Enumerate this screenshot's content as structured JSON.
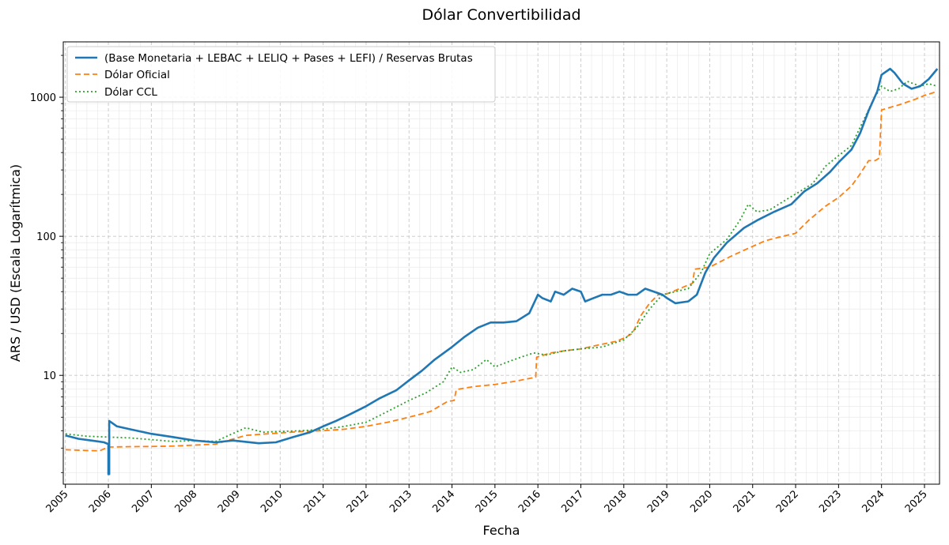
{
  "chart_data": {
    "type": "line",
    "title": "Dólar Convertibilidad",
    "xlabel": "Fecha",
    "ylabel": "ARS / USD (Escala Logarítmica)",
    "yscale": "log",
    "xlim": [
      2004.95,
      2025.35
    ],
    "ylim": [
      1.65,
      2500
    ],
    "y_ticks": [
      10,
      100,
      1000
    ],
    "y_tick_labels": [
      "10",
      "100",
      "1000"
    ],
    "x_ticks": [
      2005,
      2006,
      2007,
      2008,
      2009,
      2010,
      2011,
      2012,
      2013,
      2014,
      2015,
      2016,
      2017,
      2018,
      2019,
      2020,
      2021,
      2022,
      2023,
      2024,
      2025
    ],
    "x_tick_labels": [
      "2005",
      "2006",
      "2007",
      "2008",
      "2009",
      "2010",
      "2011",
      "2012",
      "2013",
      "2014",
      "2015",
      "2016",
      "2017",
      "2018",
      "2019",
      "2020",
      "2021",
      "2022",
      "2023",
      "2024",
      "2025"
    ],
    "grid": true,
    "legend_position": "top-left",
    "series": [
      {
        "name": "(Base Monetaria + LEBAC + LELIQ + Pases + LEFI) / Reservas Brutas",
        "color": "#1f77b4",
        "style": "solid",
        "x": [
          2005.0,
          2005.3,
          2005.6,
          2005.9,
          2006.0,
          2006.0,
          2006.02,
          2006.02,
          2006.2,
          2006.5,
          2007.0,
          2007.5,
          2008.0,
          2008.5,
          2008.9,
          2009.1,
          2009.5,
          2009.9,
          2010.3,
          2010.7,
          2011.0,
          2011.3,
          2011.6,
          2012.0,
          2012.3,
          2012.7,
          2013.0,
          2013.3,
          2013.6,
          2014.0,
          2014.3,
          2014.6,
          2014.9,
          2015.2,
          2015.5,
          2015.8,
          2016.0,
          2016.1,
          2016.3,
          2016.4,
          2016.6,
          2016.8,
          2017.0,
          2017.1,
          2017.3,
          2017.5,
          2017.7,
          2017.9,
          2018.1,
          2018.3,
          2018.5,
          2018.7,
          2018.9,
          2019.0,
          2019.2,
          2019.5,
          2019.7,
          2019.9,
          2020.1,
          2020.4,
          2020.8,
          2021.1,
          2021.5,
          2021.9,
          2022.2,
          2022.5,
          2022.8,
          2023.0,
          2023.3,
          2023.5,
          2023.7,
          2023.9,
          2024.0,
          2024.2,
          2024.3,
          2024.5,
          2024.7,
          2024.9,
          2025.1,
          2025.3
        ],
        "y": [
          3.7,
          3.5,
          3.4,
          3.3,
          3.2,
          1.95,
          1.95,
          4.7,
          4.3,
          4.1,
          3.8,
          3.6,
          3.4,
          3.3,
          3.4,
          3.35,
          3.25,
          3.3,
          3.6,
          3.9,
          4.3,
          4.7,
          5.2,
          6.0,
          6.8,
          7.8,
          9.2,
          10.8,
          13.0,
          16.0,
          19.0,
          22.0,
          24.0,
          24.0,
          24.5,
          28.0,
          38.0,
          36.0,
          34.0,
          40.0,
          38.0,
          42.0,
          40.0,
          34.0,
          36.0,
          38.0,
          38.0,
          40.0,
          38.0,
          38.0,
          42.0,
          40.0,
          38.0,
          36.0,
          33.0,
          34.0,
          38.0,
          55.0,
          70.0,
          90.0,
          115.0,
          130.0,
          150.0,
          170.0,
          210.0,
          240.0,
          290.0,
          340.0,
          420.0,
          550.0,
          800.0,
          1100.0,
          1450.0,
          1600.0,
          1500.0,
          1250.0,
          1150.0,
          1200.0,
          1350.0,
          1600.0
        ]
      },
      {
        "name": "Dólar Oficial",
        "color": "#ff7f0e",
        "style": "dashed",
        "x": [
          2005.0,
          2005.5,
          2005.8,
          2006.0,
          2006.5,
          2007.0,
          2007.5,
          2008.0,
          2008.5,
          2008.7,
          2008.9,
          2009.2,
          2009.6,
          2010.0,
          2010.5,
          2011.0,
          2011.5,
          2012.0,
          2012.5,
          2013.0,
          2013.5,
          2013.9,
          2014.05,
          2014.1,
          2014.5,
          2015.0,
          2015.5,
          2015.95,
          2015.97,
          2016.3,
          2016.6,
          2017.0,
          2017.4,
          2017.8,
          2018.0,
          2018.2,
          2018.4,
          2018.6,
          2018.8,
          2019.0,
          2019.3,
          2019.6,
          2019.65,
          2020.0,
          2020.5,
          2020.9,
          2021.3,
          2021.7,
          2022.0,
          2022.3,
          2022.7,
          2023.0,
          2023.3,
          2023.5,
          2023.7,
          2023.85,
          2023.95,
          2024.0,
          2024.4,
          2024.8,
          2025.0,
          2025.3
        ],
        "y": [
          2.92,
          2.88,
          2.87,
          3.05,
          3.07,
          3.08,
          3.1,
          3.15,
          3.2,
          3.35,
          3.48,
          3.7,
          3.78,
          3.85,
          3.95,
          4.0,
          4.1,
          4.3,
          4.6,
          5.0,
          5.5,
          6.5,
          6.6,
          7.9,
          8.3,
          8.6,
          9.1,
          9.7,
          13.5,
          14.5,
          15.0,
          15.5,
          16.5,
          17.5,
          18.5,
          20.0,
          27.0,
          33.0,
          38.0,
          38.5,
          42.0,
          46.0,
          58.0,
          60.0,
          72.0,
          82.0,
          93.0,
          100.0,
          105.0,
          130.0,
          165.0,
          190.0,
          230.0,
          280.0,
          350.0,
          350.0,
          365.0,
          810.0,
          880.0,
          970.0,
          1030.0,
          1100.0
        ]
      },
      {
        "name": "Dólar CCL",
        "color": "#2ca02c",
        "style": "dotted",
        "x": [
          2005.0,
          2005.5,
          2006.0,
          2006.5,
          2007.0,
          2007.5,
          2008.0,
          2008.5,
          2008.8,
          2009.2,
          2009.6,
          2010.0,
          2010.5,
          2011.0,
          2011.5,
          2012.0,
          2012.5,
          2013.0,
          2013.4,
          2013.8,
          2014.0,
          2014.2,
          2014.5,
          2014.8,
          2015.0,
          2015.3,
          2015.6,
          2015.9,
          2016.2,
          2016.6,
          2017.0,
          2017.5,
          2018.0,
          2018.3,
          2018.6,
          2018.9,
          2019.2,
          2019.5,
          2019.8,
          2020.0,
          2020.4,
          2020.7,
          2020.9,
          2021.1,
          2021.4,
          2021.8,
          2022.1,
          2022.4,
          2022.7,
          2023.0,
          2023.3,
          2023.6,
          2023.8,
          2024.0,
          2024.2,
          2024.4,
          2024.6,
          2024.9,
          2025.1,
          2025.3
        ],
        "y": [
          3.8,
          3.65,
          3.6,
          3.55,
          3.45,
          3.35,
          3.4,
          3.35,
          3.7,
          4.2,
          3.9,
          3.95,
          4.0,
          4.1,
          4.3,
          4.6,
          5.5,
          6.6,
          7.5,
          9.0,
          11.5,
          10.5,
          11.0,
          13.0,
          11.5,
          12.5,
          13.5,
          14.5,
          14.0,
          15.0,
          15.5,
          16.0,
          18.0,
          22.0,
          30.0,
          38.0,
          40.0,
          42.0,
          55.0,
          75.0,
          95.0,
          130.0,
          170.0,
          150.0,
          155.0,
          185.0,
          210.0,
          240.0,
          320.0,
          380.0,
          450.0,
          700.0,
          950.0,
          1200.0,
          1100.0,
          1150.0,
          1300.0,
          1200.0,
          1250.0,
          1200.0
        ]
      }
    ]
  }
}
